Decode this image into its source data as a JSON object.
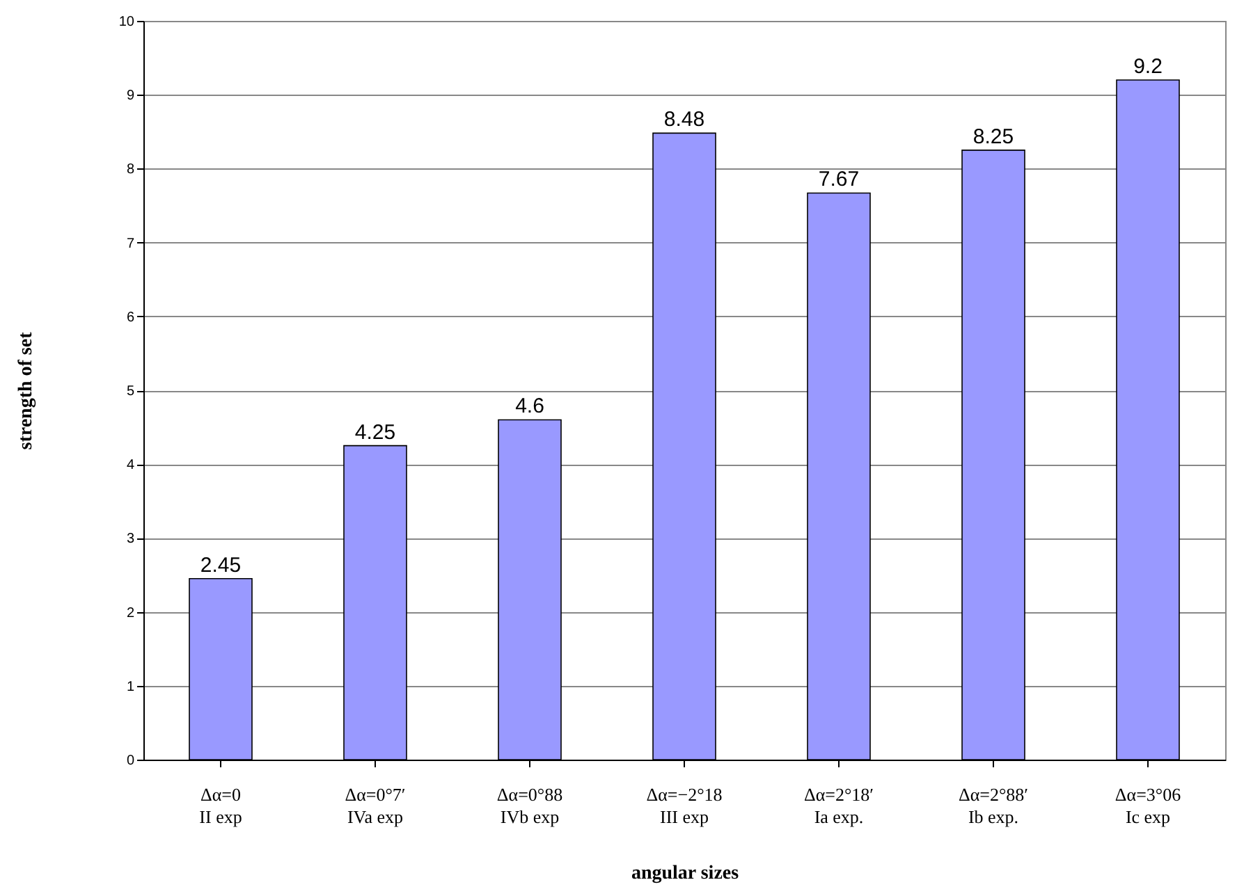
{
  "chart_data": {
    "type": "bar",
    "xlabel": "angular sizes",
    "ylabel": "strength of set",
    "categories": [
      "Δα=0\nII exp",
      "Δα=0°7′\nIVa exp",
      "Δα=0°88\nIVb exp",
      "Δα=−2°18\nIII  exp",
      "Δα=2°18′\nIa exp.",
      "Δα=2°88′\nIb  exp.",
      "Δα=3°06\nIc exp"
    ],
    "values": [
      2.45,
      4.25,
      4.6,
      8.48,
      7.67,
      8.25,
      9.2
    ],
    "color": "#9999ff",
    "ylim": [
      0,
      10
    ],
    "yticks": [
      0,
      1,
      2,
      3,
      4,
      5,
      6,
      7,
      8,
      9,
      10
    ],
    "grid": "y",
    "data_labels": true
  }
}
